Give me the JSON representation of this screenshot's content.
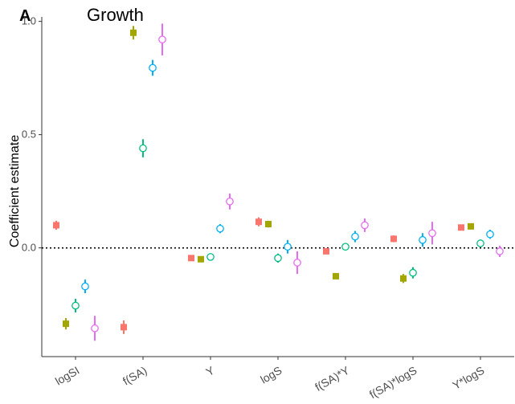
{
  "panel_letter": "A",
  "chart_data": {
    "type": "scatter",
    "title": "Growth",
    "xlabel": "",
    "ylabel": "Coefficient estimate",
    "categories": [
      "logSI",
      "f(SA)",
      "Y",
      "logS",
      "f(SA)*Y",
      "f(SA)*logS",
      "Y*logS"
    ],
    "ylim": [
      -0.48,
      1.02
    ],
    "yticks": [
      "0.0",
      "0.5",
      "1.0"
    ],
    "yticks_values": [
      0.0,
      0.5,
      1.0
    ],
    "reference_line": {
      "y": 0.0,
      "style": "dotted"
    },
    "grid": false,
    "legend": "none",
    "series": [
      {
        "color": "#F8766D",
        "marker": "filled-square",
        "values": [
          0.1,
          -0.35,
          -0.045,
          0.115,
          -0.015,
          0.04,
          0.09
        ],
        "ci_low": [
          0.08,
          -0.38,
          -0.055,
          0.095,
          -0.025,
          0.025,
          0.08
        ],
        "ci_high": [
          0.12,
          -0.32,
          -0.035,
          0.135,
          -0.005,
          0.055,
          0.1
        ]
      },
      {
        "color": "#A3A500",
        "marker": "filled-square",
        "values": [
          -0.335,
          0.95,
          -0.05,
          0.105,
          -0.125,
          -0.135,
          0.095
        ],
        "ci_low": [
          -0.36,
          0.92,
          -0.06,
          0.09,
          -0.135,
          -0.155,
          0.085
        ],
        "ci_high": [
          -0.31,
          0.98,
          -0.04,
          0.12,
          -0.115,
          -0.115,
          0.105
        ]
      },
      {
        "color": "#00BF7D",
        "marker": "open-circle",
        "values": [
          -0.255,
          0.44,
          -0.04,
          -0.045,
          0.005,
          -0.11,
          0.02
        ],
        "ci_low": [
          -0.285,
          0.4,
          -0.05,
          -0.065,
          -0.005,
          -0.135,
          0.005
        ],
        "ci_high": [
          -0.225,
          0.48,
          -0.03,
          -0.025,
          0.015,
          -0.085,
          0.035
        ]
      },
      {
        "color": "#00B0F6",
        "marker": "open-circle",
        "values": [
          -0.17,
          0.795,
          0.085,
          0.005,
          0.05,
          0.035,
          0.06
        ],
        "ci_low": [
          -0.2,
          0.76,
          0.065,
          -0.025,
          0.025,
          0.005,
          0.04
        ],
        "ci_high": [
          -0.14,
          0.83,
          0.105,
          0.035,
          0.075,
          0.065,
          0.08
        ]
      },
      {
        "color": "#E76BF3",
        "marker": "open-circle",
        "values": [
          -0.355,
          0.92,
          0.205,
          -0.065,
          0.1,
          0.065,
          -0.015
        ],
        "ci_low": [
          -0.41,
          0.85,
          0.17,
          -0.115,
          0.07,
          0.015,
          -0.04
        ],
        "ci_high": [
          -0.3,
          0.99,
          0.24,
          -0.015,
          0.13,
          0.115,
          0.01
        ]
      }
    ]
  }
}
